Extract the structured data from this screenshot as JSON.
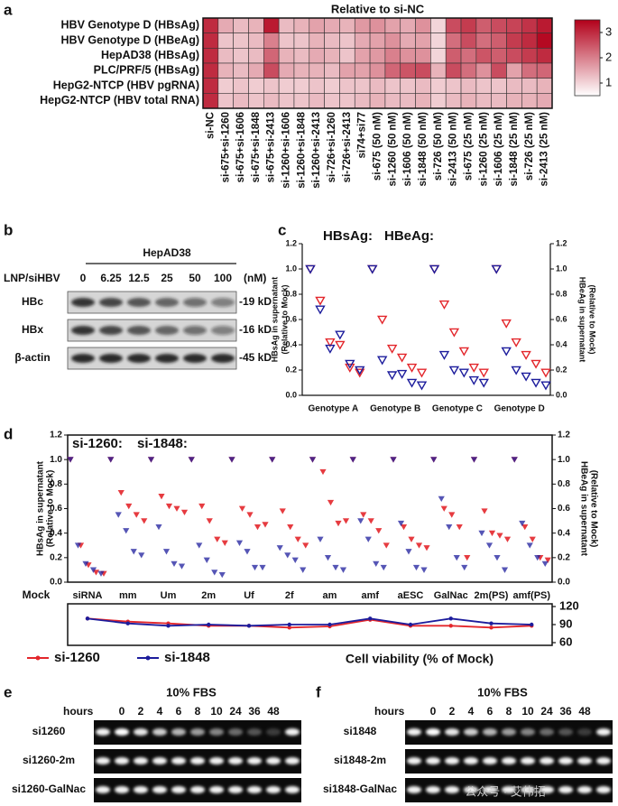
{
  "panel_labels": [
    "a",
    "b",
    "c",
    "d",
    "e",
    "f"
  ],
  "chart_data": [
    {
      "type": "heatmap",
      "title": "Relative to si-NC",
      "rows": [
        "HBV Genotype D (HBsAg)",
        "HBV Genotype D (HBeAg)",
        "HepAD38 (HBsAg)",
        "PLC/PRF/5 (HBsAg)",
        "HepG2-NTCP (HBV pgRNA)",
        "HepG2-NTCP (HBV total RNA)"
      ],
      "columns": [
        "si-NC",
        "si-675+si-1260",
        "si-675+si-1606",
        "si-675+si-1848",
        "si-675+si-2413",
        "si-1260+si-1606",
        "si-1260+si-1848",
        "si-1260+si-2413",
        "si-726+si-1260",
        "si-726+si-2413",
        "si74+si77",
        "si-675 (50 nM)",
        "si-1260 (50 nM)",
        "si-1606 (50 nM)",
        "si-1848 (50 nM)",
        "si-726 (50 nM)",
        "si-2413 (50 nM)",
        "si-675 (25 nM)",
        "si-1260 (25 nM)",
        "si-1606 (25 nM)",
        "si-1848 (25 nM)",
        "si-726 (25 nM)",
        "si-2413 (25 nM)"
      ],
      "values": [
        [
          3.0,
          1.5,
          1.3,
          1.4,
          3.2,
          1.3,
          1.4,
          1.6,
          1.5,
          1.4,
          1.7,
          1.8,
          1.6,
          1.5,
          1.8,
          1.0,
          2.6,
          2.8,
          2.4,
          2.6,
          2.7,
          2.9,
          3.2
        ],
        [
          3.0,
          1.2,
          1.2,
          1.3,
          2.0,
          1.2,
          1.2,
          1.4,
          1.3,
          1.2,
          1.5,
          1.6,
          1.8,
          1.5,
          1.6,
          1.0,
          2.2,
          2.6,
          2.2,
          2.4,
          2.8,
          3.0,
          3.4
        ],
        [
          3.0,
          1.3,
          1.2,
          1.3,
          2.3,
          1.4,
          1.3,
          1.5,
          1.4,
          1.2,
          1.6,
          1.7,
          2.0,
          1.8,
          1.8,
          1.0,
          2.4,
          2.2,
          2.5,
          2.4,
          2.6,
          2.8,
          3.0
        ],
        [
          3.0,
          1.4,
          1.3,
          1.5,
          2.6,
          1.5,
          1.4,
          1.4,
          1.3,
          1.6,
          1.6,
          1.8,
          2.3,
          2.5,
          2.6,
          1.4,
          2.6,
          2.2,
          1.8,
          2.6,
          1.6,
          2.2,
          2.3
        ],
        [
          3.0,
          1.1,
          1.2,
          1.1,
          1.2,
          1.1,
          1.1,
          1.2,
          1.1,
          1.2,
          1.2,
          1.3,
          1.2,
          1.2,
          1.3,
          1.1,
          1.2,
          1.3,
          1.2,
          1.2,
          1.3,
          1.3,
          1.4
        ],
        [
          3.0,
          1.2,
          1.3,
          1.2,
          1.3,
          1.2,
          1.2,
          1.3,
          1.2,
          1.2,
          1.3,
          1.4,
          1.3,
          1.3,
          1.4,
          1.1,
          1.3,
          1.4,
          1.3,
          1.3,
          1.4,
          1.4,
          1.5
        ]
      ],
      "zlim": [
        0.5,
        3.5
      ],
      "zticks": [
        1,
        2,
        3
      ],
      "colors": [
        "#ffffff",
        "#b2001a"
      ]
    },
    {
      "type": "scatter",
      "categories": [
        "Genotype A",
        "Genotype B",
        "Genotype C",
        "Genotype D"
      ],
      "series": [
        {
          "name": "HBsAg:",
          "color": "#e3262b",
          "values": [
            1.0,
            0.75,
            0.42,
            0.4,
            0.22,
            0.18,
            1.0,
            0.6,
            0.37,
            0.3,
            0.22,
            0.18,
            1.0,
            0.72,
            0.5,
            0.35,
            0.22,
            0.18,
            1.0,
            0.57,
            0.42,
            0.32,
            0.25,
            0.18
          ]
        },
        {
          "name": "HBeAg:",
          "color": "#1c1c9c",
          "axis": "y2",
          "values": [
            1.0,
            0.68,
            0.37,
            0.48,
            0.25,
            0.2,
            1.0,
            0.28,
            0.16,
            0.17,
            0.1,
            0.08,
            1.0,
            0.32,
            0.2,
            0.18,
            0.12,
            0.1,
            1.0,
            0.35,
            0.2,
            0.15,
            0.1,
            0.08
          ]
        }
      ],
      "ylabel": [
        "HBsAg in supernatant",
        "(Relative to Mock)"
      ],
      "y2label": [
        "HBeAg in supernatant",
        "(Relative to Mock)"
      ],
      "ylim": [
        0,
        1.2
      ],
      "yticks": [
        {
          "value": 0,
          "label": "0.0"
        },
        0.2,
        0.4,
        0.6,
        0.8,
        {
          "value": 1,
          "label": "1.0"
        },
        1.2
      ],
      "y2lim": [
        0,
        1.2
      ],
      "y2ticks": [
        {
          "value": 0,
          "label": "0.0"
        },
        0.2,
        0.4,
        0.6,
        0.8,
        {
          "value": 1,
          "label": "1.0"
        },
        1.2
      ]
    },
    {
      "type": "grouped-scatter",
      "row_label": "Mock",
      "categories": [
        "siRNA",
        "mm",
        "Um",
        "2m",
        "Uf",
        "2f",
        "am",
        "amf",
        "aESC",
        "GalNac",
        "2m(PS)",
        "amf(PS)"
      ],
      "series": [
        {
          "name": "si-1260:",
          "color": "#e3262b",
          "values": [
            1,
            0.3,
            0.14,
            0.08,
            0.07,
            1,
            0.73,
            0.62,
            0.55,
            0.5,
            1,
            0.7,
            0.62,
            0.6,
            0.57,
            1,
            0.62,
            0.5,
            0.35,
            0.32,
            1,
            0.6,
            0.55,
            0.45,
            0.47,
            1,
            0.58,
            0.45,
            0.35,
            0.3,
            1,
            0.9,
            0.65,
            0.48,
            0.5,
            1,
            0.55,
            0.5,
            0.42,
            0.3,
            1,
            0.45,
            0.35,
            0.3,
            0.28,
            1,
            0.6,
            0.55,
            0.45,
            0.2,
            1,
            0.58,
            0.4,
            0.38,
            0.35,
            1,
            0.45,
            0.35,
            0.2,
            0.18
          ]
        },
        {
          "name": "si-1848:",
          "color": "#1c1c9c",
          "axis": "y2",
          "values": [
            1,
            0.3,
            0.15,
            0.1,
            0.07,
            1,
            0.55,
            0.42,
            0.25,
            0.22,
            1,
            0.45,
            0.25,
            0.15,
            0.13,
            1,
            0.3,
            0.18,
            0.08,
            0.06,
            1,
            0.32,
            0.25,
            0.12,
            0.12,
            1,
            0.28,
            0.22,
            0.18,
            0.1,
            1,
            0.35,
            0.2,
            0.12,
            0.1,
            1,
            0.5,
            0.35,
            0.15,
            0.12,
            1,
            0.48,
            0.25,
            0.12,
            0.1,
            1,
            0.68,
            0.45,
            0.2,
            0.12,
            1,
            0.4,
            0.3,
            0.2,
            0.1,
            1,
            0.48,
            0.3,
            0.2,
            0.15
          ]
        }
      ],
      "ylabel": [
        "HBsAg in supernatant",
        "(Relative to Mock)"
      ],
      "y2label": [
        "HBeAg in supernatant",
        "(Relative to Mock)"
      ],
      "ylim": [
        0,
        1.2
      ],
      "yticks": [
        {
          "value": 0,
          "label": "0.0"
        },
        0.2,
        0.4,
        0.6,
        0.8,
        {
          "value": 1,
          "label": "1.0"
        },
        1.2
      ],
      "y2lim": [
        0,
        1.2
      ],
      "y2ticks": [
        {
          "value": 0,
          "label": "0.0"
        },
        0.2,
        0.4,
        0.6,
        0.8,
        {
          "value": 1,
          "label": "1.0"
        },
        1.2
      ]
    },
    {
      "type": "line",
      "xlabel": "Cell viability (% of Mock)",
      "series": [
        {
          "name": "si-1260",
          "color": "#e3262b",
          "values": [
            100,
            95,
            92,
            88,
            88,
            85,
            87,
            98,
            88,
            88,
            85,
            88
          ]
        },
        {
          "name": "si-1848",
          "color": "#1c1c9c",
          "values": [
            100,
            92,
            88,
            90,
            88,
            90,
            90,
            100,
            90,
            100,
            92,
            90
          ]
        }
      ],
      "y2lim": [
        60,
        120
      ],
      "y2ticks": [
        60,
        90,
        120
      ]
    }
  ],
  "blot": {
    "cell_line": "HepAD38",
    "treatment_label": "LNP/siHBV",
    "doses": [
      "0",
      "6.25",
      "12.5",
      "25",
      "50",
      "100"
    ],
    "unit": "(nM)",
    "rows": [
      {
        "name": "HBc",
        "size": "-19 kD"
      },
      {
        "name": "HBx",
        "size": "-16 kD"
      },
      {
        "name": "β-actin",
        "size": "-45 kD"
      }
    ]
  },
  "gels": [
    {
      "condition": "10% FBS",
      "hours_label": "hours",
      "hours": [
        0,
        2,
        4,
        6,
        8,
        10,
        24,
        36,
        48
      ],
      "rows": [
        "si1260",
        "si1260-2m",
        "si1260-GalNac"
      ]
    },
    {
      "condition": "10% FBS",
      "hours_label": "hours",
      "hours": [
        0,
        2,
        4,
        6,
        8,
        10,
        24,
        36,
        48
      ],
      "rows": [
        "si1848",
        "si1848-2m",
        "si1848-GalNac"
      ]
    }
  ],
  "watermark": "公众号 · 艾伟拓"
}
